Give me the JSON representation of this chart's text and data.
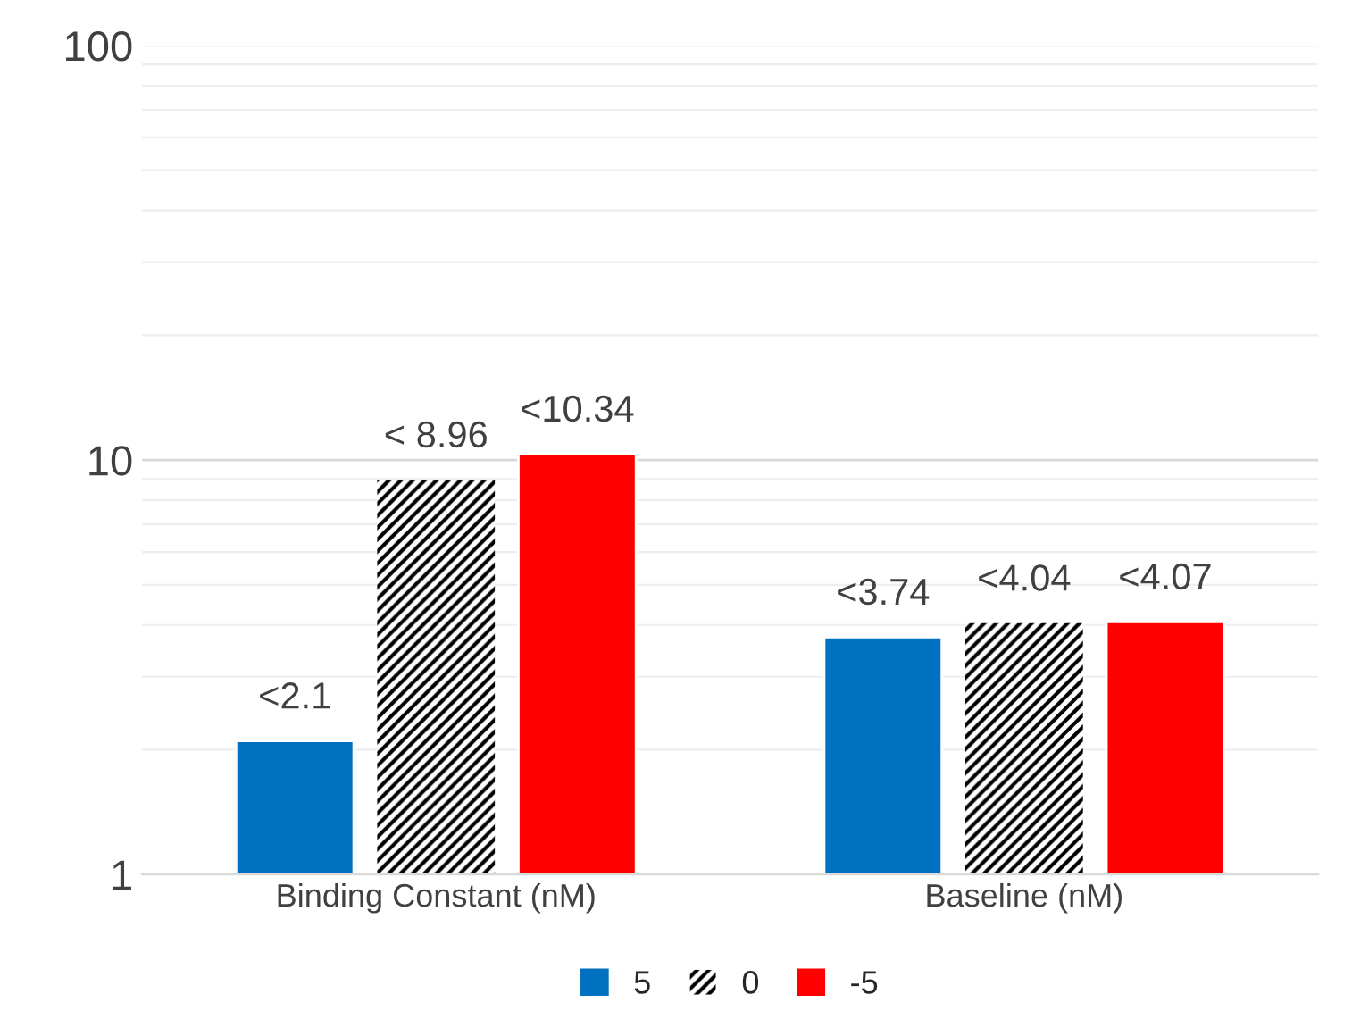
{
  "chart_data": {
    "type": "bar",
    "categories": [
      "Binding Constant (nM)",
      "Baseline (nM)"
    ],
    "series": [
      {
        "name": "5",
        "color": "#0070c0",
        "values": [
          2.1,
          3.74
        ],
        "value_labels": [
          "<2.1",
          "<3.74"
        ]
      },
      {
        "name": "0",
        "color": "#000000",
        "values": [
          8.96,
          4.04
        ],
        "value_labels": [
          "< 8.96",
          "<4.04"
        ]
      },
      {
        "name": "-5",
        "color": "#ff0000",
        "values": [
          10.34,
          4.07
        ],
        "value_labels": [
          "<10.34",
          "<4.07"
        ]
      }
    ],
    "log": true,
    "ylim": [
      1,
      100
    ],
    "yticks": [
      1,
      10,
      100
    ],
    "grid": "y",
    "legend": "bottom"
  }
}
